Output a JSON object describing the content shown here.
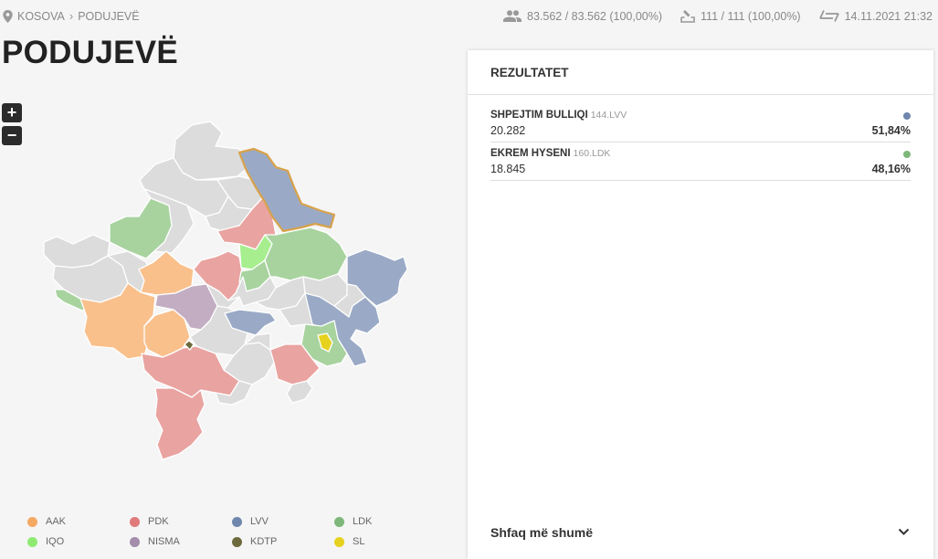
{
  "breadcrumb": {
    "root": "KOSOVA",
    "separator": "›",
    "current": "PODUJEVË",
    "icon": "location-pin-icon"
  },
  "stats": {
    "voters": "83.562 / 83.562 (100,00%)",
    "stations": "111 / 111 (100,00%)",
    "updated": "14.11.2021 21:32"
  },
  "title": "PODUJEVË",
  "zoom": {
    "in": "+",
    "out": "−"
  },
  "results": {
    "heading": "REZULTATET",
    "candidates": [
      {
        "name": "SHPEJTIM BULLIQI",
        "code": "144.LVV",
        "votes": "20.282",
        "percent": "51,84%",
        "color": "#6f86ad"
      },
      {
        "name": "EKREM HYSENI",
        "code": "160.LDK",
        "votes": "18.845",
        "percent": "48,16%",
        "color": "#7eb77a"
      }
    ],
    "show_more": "Shfaq më shumë"
  },
  "legend": [
    {
      "label": "AAK",
      "color": "#f5a863"
    },
    {
      "label": "PDK",
      "color": "#e07a7a"
    },
    {
      "label": "LVV",
      "color": "#6f86ad"
    },
    {
      "label": "LDK",
      "color": "#7eb77a"
    },
    {
      "label": "IQO",
      "color": "#8fea72"
    },
    {
      "label": "NISMA",
      "color": "#a48cab"
    },
    {
      "label": "KDTP",
      "color": "#6c6a3c"
    },
    {
      "label": "SL",
      "color": "#e6d21e"
    }
  ],
  "map_colors": {
    "none": "#dcdcdc",
    "AAK": "#f9c08c",
    "PDK": "#e9a3a0",
    "LVV": "#9aaac6",
    "LDK": "#a8d39f",
    "IQO": "#a6ee8e",
    "NISMA": "#c2adc3",
    "KDTP": "#6c6a3c",
    "SL": "#e6d21e",
    "highlight": "#d8a24a"
  }
}
